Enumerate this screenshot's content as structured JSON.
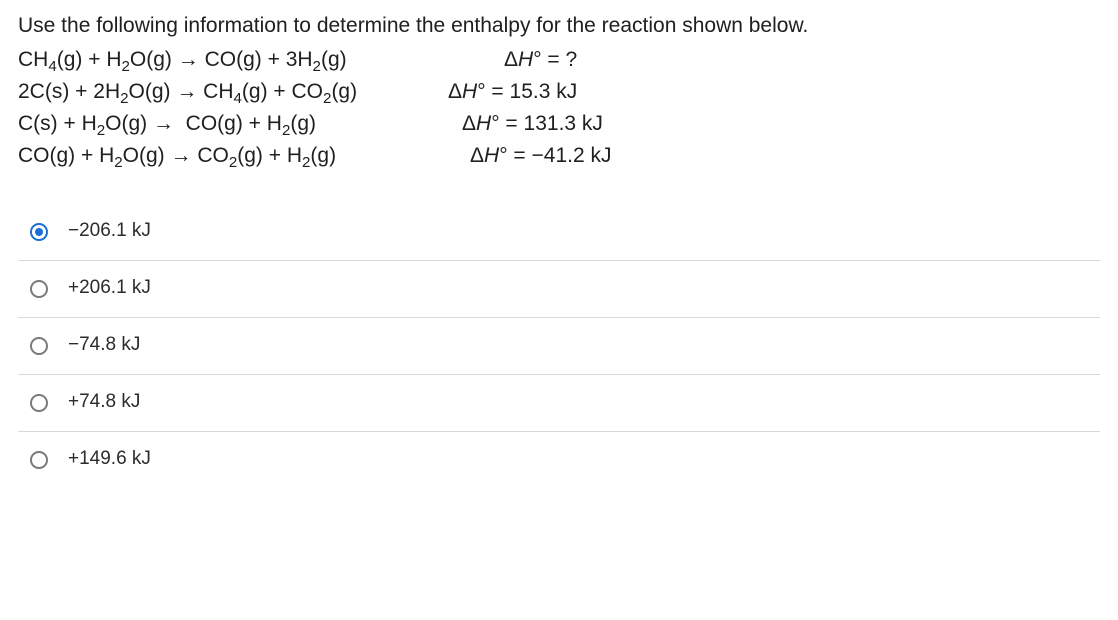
{
  "question": "Use the following information to determine the enthalpy for the reaction shown below.",
  "eq": {
    "target_lhs": "CH<sub>4</sub>(g) + H<sub>2</sub>O(g) → CO(g) + 3H<sub>2</sub>(g)",
    "target_rhs": "Δ<i>H</i>° = ?",
    "r1_lhs": "2C(s) + 2H<sub>2</sub>O(g) → CH<sub>4</sub>(g) + CO<sub>2</sub>(g)",
    "r1_rhs": "Δ<i>H</i>° = 15.3 kJ",
    "r2_lhs": "C(s) + H<sub>2</sub>O(g) →&nbsp;&nbsp;CO(g) + H<sub>2</sub>(g)",
    "r2_rhs": "Δ<i>H</i>° = 131.3 kJ",
    "r3_lhs": "CO(g) + H<sub>2</sub>O(g) → CO<sub>2</sub>(g) + H<sub>2</sub>(g)",
    "r3_rhs": "Δ<i>H</i>° = −41.2 kJ"
  },
  "options": [
    {
      "label": "−206.1 kJ",
      "selected": true
    },
    {
      "label": "+206.1 kJ",
      "selected": false
    },
    {
      "label": "−74.8 kJ",
      "selected": false
    },
    {
      "label": "+74.8 kJ",
      "selected": false
    },
    {
      "label": "+149.6 kJ",
      "selected": false
    }
  ]
}
